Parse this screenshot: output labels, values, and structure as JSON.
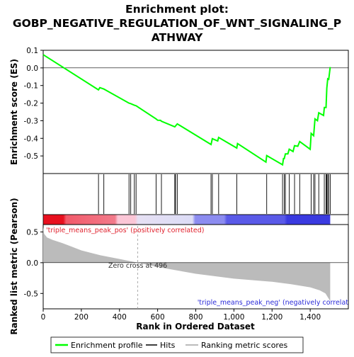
{
  "chart_data": {
    "type": "line",
    "title_lines": [
      "Enrichment plot:",
      "GOBP_NEGATIVE_REGULATION_OF_WNT_SIGNALING_P",
      "ATHWAY"
    ],
    "es_panel": {
      "ylabel": "Enrichment score (ES)",
      "ylim": [
        -0.6,
        0.1
      ],
      "yticks": [
        0.1,
        0.0,
        -0.1,
        -0.2,
        -0.3,
        -0.4,
        -0.5
      ],
      "ytick_labels": [
        "0.1",
        "0.0",
        "-0.1",
        "-0.2",
        "-0.3",
        "-0.4",
        "-0.5"
      ],
      "series": [
        {
          "name": "Enrichment profile",
          "color": "#00ff00",
          "x": [
            0,
            290,
            297,
            318,
            450,
            459,
            478,
            487,
            592,
            600,
            615,
            620,
            690,
            694,
            703,
            880,
            887,
            915,
            920,
            1015,
            1019,
            1168,
            1172,
            1255,
            1260,
            1264,
            1270,
            1283,
            1290,
            1310,
            1318,
            1335,
            1345,
            1400,
            1405,
            1418,
            1425,
            1438,
            1445,
            1470,
            1474,
            1483,
            1487,
            1492,
            1497,
            1505
          ],
          "y": [
            0.075,
            -0.125,
            -0.112,
            -0.12,
            -0.2,
            -0.203,
            -0.212,
            -0.215,
            -0.29,
            -0.297,
            -0.298,
            -0.303,
            -0.335,
            -0.33,
            -0.318,
            -0.435,
            -0.402,
            -0.415,
            -0.395,
            -0.455,
            -0.43,
            -0.535,
            -0.498,
            -0.55,
            -0.515,
            -0.515,
            -0.488,
            -0.488,
            -0.462,
            -0.475,
            -0.442,
            -0.445,
            -0.418,
            -0.462,
            -0.372,
            -0.385,
            -0.29,
            -0.3,
            -0.255,
            -0.27,
            -0.225,
            -0.225,
            -0.115,
            -0.062,
            -0.065,
            0.005
          ]
        }
      ]
    },
    "hits": {
      "x": [
        290,
        318,
        450,
        459,
        478,
        487,
        592,
        620,
        690,
        694,
        703,
        880,
        887,
        920,
        1015,
        1172,
        1255,
        1264,
        1270,
        1290,
        1318,
        1345,
        1405,
        1418,
        1425,
        1445,
        1474,
        1483,
        1487,
        1492,
        1497,
        1505
      ]
    },
    "metric_panel": {
      "ylabel": "Ranked list metric (Pearson)",
      "xlabel": "Rank in Ordered Dataset",
      "ylim": [
        -0.75,
        0.62
      ],
      "yticks": [
        0.5,
        0.0,
        -0.5
      ],
      "ytick_labels": [
        "0.5",
        "0.0",
        "-0.5"
      ],
      "fill_color": "#bbbbbb",
      "x": [
        0,
        5,
        20,
        50,
        100,
        150,
        200,
        300,
        400,
        496,
        600,
        800,
        1000,
        1200,
        1300,
        1400,
        1450,
        1480,
        1500,
        1505
      ],
      "y": [
        0.58,
        0.47,
        0.41,
        0.37,
        0.32,
        0.26,
        0.2,
        0.12,
        0.06,
        0.0,
        -0.07,
        -0.18,
        -0.26,
        -0.31,
        -0.35,
        -0.4,
        -0.45,
        -0.5,
        -0.6,
        -0.63
      ],
      "annotations": {
        "pos_label": "'triple_means_peak_pos' (positively correlated)",
        "neg_label": "'triple_means_peak_neg' (negatively correlat",
        "zero_cross": "Zero cross at 496",
        "zero_cross_x": 496
      }
    },
    "x_axis": {
      "xlim": [
        0,
        1600
      ],
      "xticks": [
        0,
        200,
        400,
        600,
        800,
        1000,
        1200,
        1400
      ],
      "xtick_labels": [
        "0",
        "200",
        "400",
        "600",
        "800",
        "1,000",
        "1,200",
        "1,400"
      ],
      "n_genes": 1505
    },
    "colors": {
      "profile_line": "#00ff00",
      "pos_label": "#e0212d",
      "neg_label": "#2b2bd8",
      "gradient": [
        "#e8101e",
        "#f25a6a",
        "#fbc6d6",
        "#dcdcf6",
        "#8c8cf0",
        "#3a3ae0"
      ]
    },
    "legend": [
      {
        "label": "Enrichment profile",
        "kind": "line",
        "color": "#00ff00"
      },
      {
        "label": "Hits",
        "kind": "line",
        "color": "#000000"
      },
      {
        "label": "Ranking metric scores",
        "kind": "line",
        "color": "#bbbbbb"
      }
    ]
  }
}
